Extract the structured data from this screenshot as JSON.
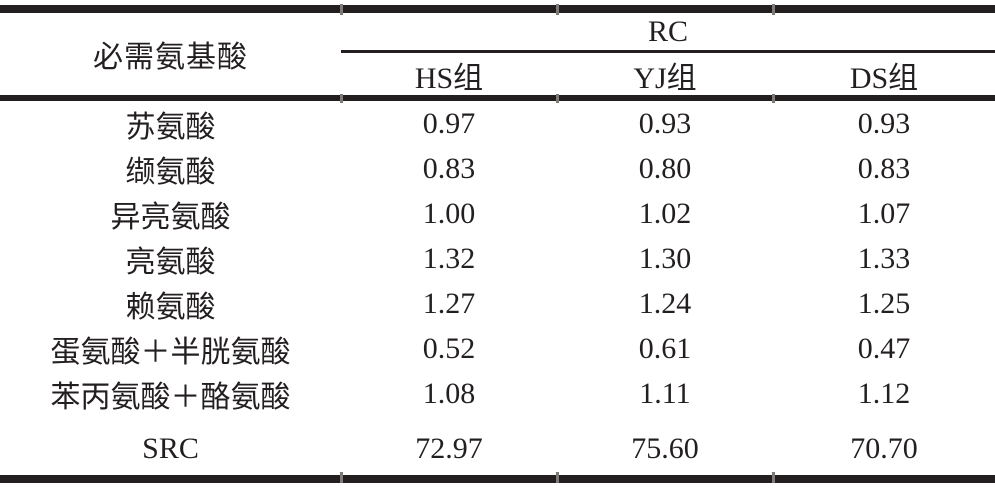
{
  "table": {
    "title_column_header": "必需氨基酸",
    "group_header": "RC",
    "columns": [
      "HS组",
      "YJ组",
      "DS组"
    ],
    "rows": [
      {
        "label": "苏氨酸",
        "values": [
          "0.97",
          "0.93",
          "0.93"
        ]
      },
      {
        "label": "缬氨酸",
        "values": [
          "0.83",
          "0.80",
          "0.83"
        ]
      },
      {
        "label": "异亮氨酸",
        "values": [
          "1.00",
          "1.02",
          "1.07"
        ]
      },
      {
        "label": "亮氨酸",
        "values": [
          "1.32",
          "1.30",
          "1.33"
        ]
      },
      {
        "label": "赖氨酸",
        "values": [
          "1.27",
          "1.24",
          "1.25"
        ]
      },
      {
        "label": "蛋氨酸＋半胱氨酸",
        "values": [
          "0.52",
          "0.61",
          "0.47"
        ]
      },
      {
        "label": "苯丙氨酸＋酪氨酸",
        "values": [
          "1.08",
          "1.11",
          "1.12"
        ]
      }
    ],
    "footer": {
      "label": "SRC",
      "values": [
        "72.97",
        "75.60",
        "70.70"
      ]
    }
  },
  "colors": {
    "text": "#231f20",
    "rule": "#231f20",
    "boundary_tick": "#7d7a78",
    "background": "#ffffff"
  }
}
